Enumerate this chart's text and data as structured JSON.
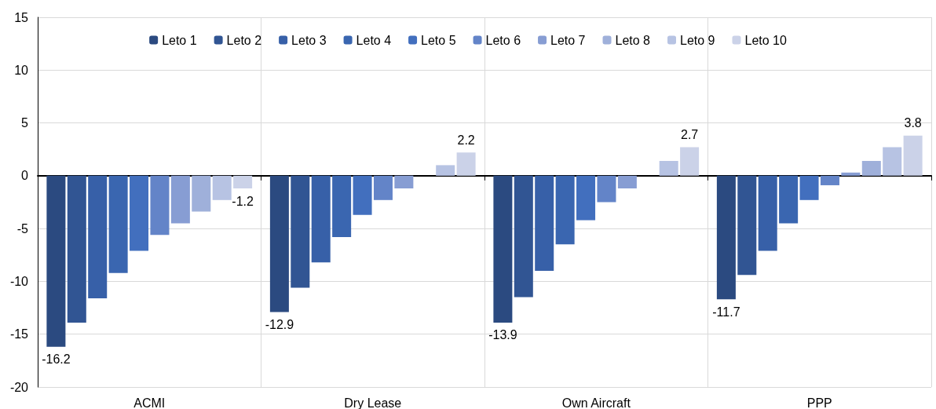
{
  "chart_data": {
    "type": "bar",
    "categories": [
      "ACMI",
      "Dry Lease",
      "Own Aircraft",
      "PPP"
    ],
    "series": [
      {
        "name": "Leto 1",
        "color": "#2b4a80",
        "values": [
          -16.2,
          -12.9,
          -13.9,
          -11.7
        ],
        "value_labels": [
          "-16.2",
          "-12.9",
          "-13.9",
          "-11.7"
        ]
      },
      {
        "name": "Leto 2",
        "color": "#315593",
        "values": [
          -13.9,
          -10.6,
          -11.5,
          -9.4
        ]
      },
      {
        "name": "Leto 3",
        "color": "#3760a8",
        "values": [
          -11.6,
          -8.2,
          -9.0,
          -7.1
        ]
      },
      {
        "name": "Leto 4",
        "color": "#3a66b0",
        "values": [
          -9.2,
          -5.8,
          -6.5,
          -4.5
        ]
      },
      {
        "name": "Leto 5",
        "color": "#426fbe",
        "values": [
          -7.1,
          -3.7,
          -4.2,
          -2.3
        ]
      },
      {
        "name": "Leto 6",
        "color": "#6384c8",
        "values": [
          -5.6,
          -2.3,
          -2.5,
          -0.9
        ]
      },
      {
        "name": "Leto 7",
        "color": "#879dd3",
        "values": [
          -4.5,
          -1.2,
          -1.2,
          0.3
        ]
      },
      {
        "name": "Leto 8",
        "color": "#9fb0da",
        "values": [
          -3.4,
          0,
          0,
          1.4
        ]
      },
      {
        "name": "Leto 9",
        "color": "#b7c3e3",
        "values": [
          -2.3,
          1.0,
          1.4,
          2.7
        ]
      },
      {
        "name": "Leto 10",
        "color": "#cbd2e8",
        "values": [
          -1.2,
          2.2,
          2.7,
          3.8
        ],
        "value_labels": [
          "-1.2",
          "2.2",
          "2.7",
          "3.8"
        ]
      }
    ],
    "ylim": [
      -20,
      15
    ],
    "yticks": [
      -20,
      -15,
      -10,
      -5,
      0,
      5,
      10,
      15
    ],
    "grid": true,
    "legend": "top"
  }
}
